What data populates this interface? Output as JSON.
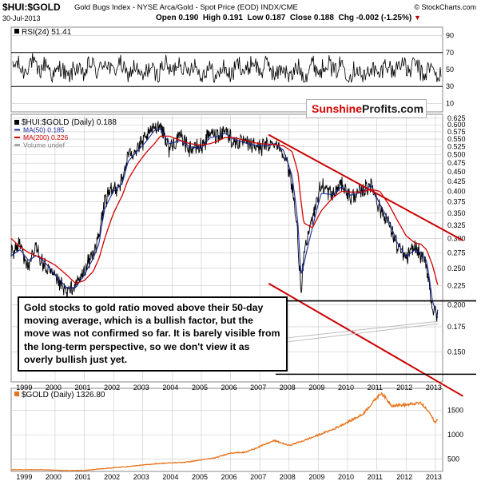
{
  "header": {
    "symbol": "$HUI:$GOLD",
    "description": "Gold Bugs Index - NYSE Arca/Gold - Spot Price (EOD) INDX/CME",
    "copyright": "© StockCharts.com",
    "date": "30-Jul-2013",
    "open": "Open 0.190",
    "high": "High 0.191",
    "low": "Low 0.187",
    "close": "Close 0.188",
    "change": "Chg -0.002 (-1.25%)"
  },
  "logo": {
    "part1": "Sunshine",
    "part2": "Profits.com"
  },
  "annotation": "Gold stocks to gold ratio moved above their 50-day moving average, which is a bullish factor, but the move was not confirmed so far. It is barely visible from the long-term perspective, so we don't view it as overly bullish just yet.",
  "colors": {
    "ratio": "#000000",
    "ma50": "#1a2a9c",
    "ma200": "#d40000",
    "gold": "#e8731a",
    "trendline": "#cc0000",
    "grid": "#c8c8c8"
  },
  "chart_data": [
    {
      "type": "line",
      "title": "RSI(24) 51.41",
      "legend": "RSI(24) 51.41",
      "ylim": [
        0,
        100
      ],
      "yticks": [
        10,
        30,
        50,
        70,
        90
      ],
      "guides": [
        30,
        70
      ],
      "last": 51.41,
      "series": [
        {
          "name": "RSI(24)",
          "min": 35,
          "max": 72,
          "mean": 50
        }
      ]
    },
    {
      "type": "line",
      "title": "$HUI:$GOLD (Daily) 0.188",
      "scale": "log",
      "ylim": [
        0.125,
        0.64
      ],
      "yticks": [
        "0.625",
        "0.600",
        "0.575",
        "0.550",
        "0.525",
        "0.500",
        "0.475",
        "0.450",
        "0.425",
        "0.400",
        "0.375",
        "0.350",
        "0.325",
        "0.300",
        "0.275",
        "0.250",
        "0.225",
        "0.200",
        "0.175",
        "0.150"
      ],
      "x_tick_labels": [
        "1999",
        "2000",
        "2001",
        "2002",
        "2003",
        "2004",
        "2005",
        "2006",
        "2007",
        "2008",
        "2009",
        "2010",
        "2011",
        "2012",
        "2013"
      ],
      "legend": [
        {
          "name": "$HUI:$GOLD (Daily) 0.188",
          "color": "#1a2a9c"
        },
        {
          "name": "MA(50) 0.185",
          "color": "#1a2a9c"
        },
        {
          "name": "MA(200) 0.226",
          "color": "#d40000"
        },
        {
          "name": "Volume undef",
          "color": "#808080"
        }
      ],
      "x": [
        1999.0,
        1999.3,
        1999.6,
        1999.85,
        2000.1,
        2000.5,
        2000.9,
        2001.2,
        2001.5,
        2001.8,
        2002.0,
        2002.2,
        2002.5,
        2002.8,
        2003.0,
        2003.3,
        2003.6,
        2003.9,
        2004.1,
        2004.4,
        2004.8,
        2005.1,
        2005.5,
        2005.8,
        2006.1,
        2006.3,
        2006.6,
        2006.9,
        2007.2,
        2007.5,
        2007.8,
        2008.0,
        2008.3,
        2008.6,
        2008.8,
        2008.9,
        2009.0,
        2009.3,
        2009.6,
        2010.0,
        2010.3,
        2010.6,
        2011.0,
        2011.3,
        2011.6,
        2011.9,
        2012.2,
        2012.5,
        2012.8,
        2013.0,
        2013.2,
        2013.4,
        2013.58
      ],
      "values": [
        0.275,
        0.29,
        0.25,
        0.285,
        0.255,
        0.235,
        0.215,
        0.225,
        0.245,
        0.275,
        0.3,
        0.38,
        0.405,
        0.425,
        0.5,
        0.52,
        0.55,
        0.595,
        0.6,
        0.52,
        0.56,
        0.52,
        0.525,
        0.57,
        0.565,
        0.585,
        0.54,
        0.54,
        0.53,
        0.525,
        0.53,
        0.54,
        0.51,
        0.42,
        0.3,
        0.21,
        0.265,
        0.345,
        0.415,
        0.39,
        0.42,
        0.385,
        0.4,
        0.42,
        0.36,
        0.33,
        0.285,
        0.265,
        0.285,
        0.27,
        0.255,
        0.195,
        0.188
      ],
      "ma50": [
        0.27,
        0.28,
        0.262,
        0.27,
        0.262,
        0.24,
        0.222,
        0.222,
        0.24,
        0.265,
        0.29,
        0.36,
        0.4,
        0.42,
        0.48,
        0.51,
        0.54,
        0.58,
        0.585,
        0.535,
        0.545,
        0.525,
        0.52,
        0.555,
        0.56,
        0.57,
        0.55,
        0.54,
        0.532,
        0.528,
        0.528,
        0.535,
        0.515,
        0.44,
        0.33,
        0.24,
        0.255,
        0.32,
        0.395,
        0.392,
        0.412,
        0.39,
        0.398,
        0.415,
        0.37,
        0.335,
        0.292,
        0.268,
        0.28,
        0.275,
        0.262,
        0.205,
        0.185
      ],
      "ma200": [
        0.3,
        0.285,
        0.275,
        0.27,
        0.265,
        0.255,
        0.24,
        0.228,
        0.232,
        0.245,
        0.265,
        0.3,
        0.35,
        0.39,
        0.43,
        0.47,
        0.505,
        0.535,
        0.56,
        0.56,
        0.545,
        0.535,
        0.53,
        0.535,
        0.545,
        0.555,
        0.555,
        0.548,
        0.54,
        0.535,
        0.533,
        0.532,
        0.528,
        0.51,
        0.45,
        0.38,
        0.33,
        0.32,
        0.355,
        0.385,
        0.4,
        0.398,
        0.398,
        0.405,
        0.4,
        0.37,
        0.335,
        0.305,
        0.292,
        0.29,
        0.28,
        0.255,
        0.226
      ],
      "annotations": [
        {
          "type": "channel-line",
          "from": {
            "x": 2007.8,
            "y": 0.565
          },
          "to": {
            "x": 2013.9,
            "y": 0.305
          }
        },
        {
          "type": "channel-line",
          "from": {
            "x": 2007.8,
            "y": 0.228
          },
          "to": {
            "x": 2013.9,
            "y": 0.118
          }
        },
        {
          "type": "horizontal",
          "y": 0.205
        },
        {
          "type": "horizontal",
          "y": 0.131
        },
        {
          "type": "support-line",
          "from": {
            "x": 2008.3,
            "y": 0.162
          },
          "to": {
            "x": 2013.6,
            "y": 0.181
          }
        }
      ]
    },
    {
      "type": "line",
      "title": "$GOLD (Daily) 1326.80",
      "legend": "$GOLD (Daily) 1326.80",
      "ylim": [
        250,
        1950
      ],
      "yticks": [
        500,
        1000,
        1500
      ],
      "x_tick_labels": [
        "1999",
        "2000",
        "2001",
        "2002",
        "2003",
        "2004",
        "2005",
        "2006",
        "2007",
        "2008",
        "2009",
        "2010",
        "2011",
        "2012",
        "2013"
      ],
      "x": [
        1999.0,
        2000.0,
        2001.0,
        2001.5,
        2002.0,
        2003.0,
        2004.0,
        2005.0,
        2006.0,
        2006.5,
        2007.0,
        2008.0,
        2008.5,
        2009.0,
        2010.0,
        2011.0,
        2011.65,
        2012.0,
        2012.5,
        2013.0,
        2013.3,
        2013.5,
        2013.58
      ],
      "values": [
        285,
        285,
        265,
        270,
        300,
        350,
        410,
        440,
        530,
        630,
        640,
        880,
        780,
        880,
        1110,
        1410,
        1860,
        1600,
        1610,
        1650,
        1450,
        1240,
        1327
      ]
    }
  ]
}
